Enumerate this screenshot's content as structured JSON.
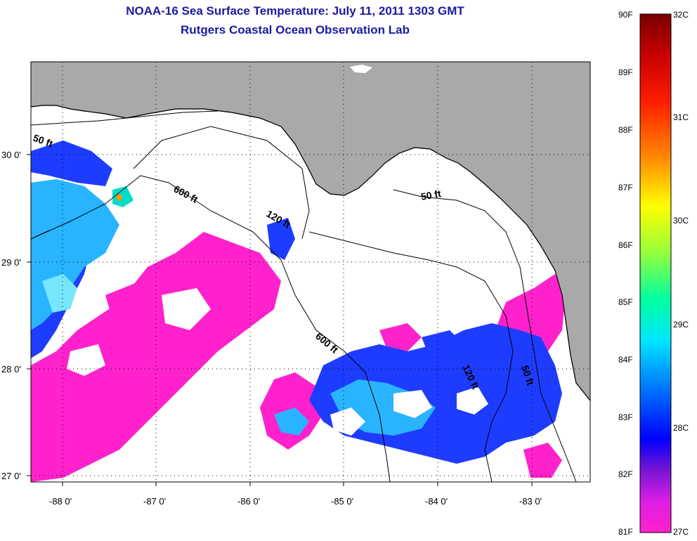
{
  "title": "NOAA-16 Sea Surface Temperature:  July 11, 2011 1303 GMT",
  "subtitle": "Rutgers Coastal Ocean Observation Lab",
  "axes": {
    "x_ticks": [
      "-88 0'",
      "-87 0'",
      "-86 0'",
      "-85 0'",
      "-84 0'",
      "-83 0'"
    ],
    "y_ticks": [
      "30 0'",
      "29 0'",
      "28 0'",
      "27 0'"
    ]
  },
  "contours": [
    "50 ft",
    "600 ft",
    "120 ft",
    "50 ft",
    "600 ft",
    "120 ft",
    "50 ft"
  ],
  "colorbar": {
    "fahrenheit": [
      "90F",
      "89F",
      "88F",
      "87F",
      "86F",
      "85F",
      "84F",
      "83F",
      "82F",
      "81F"
    ],
    "celsius": [
      "32C",
      "31C",
      "30C",
      "29C",
      "28C",
      "27C"
    ]
  },
  "colors": {
    "land": "#a9a9a9",
    "cloud": "#ffffff",
    "title": "#1a1aa0",
    "warm_max": "#7a0000",
    "cool_min": "#ff22cc"
  }
}
